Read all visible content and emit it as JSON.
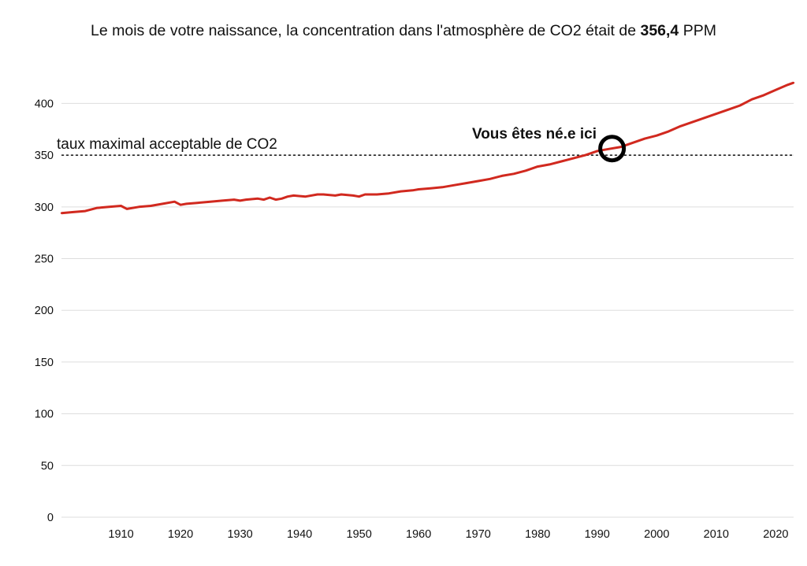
{
  "title": {
    "prefix": "Le mois de votre naissance, la concentration dans l'atmosphère de CO2 était de ",
    "value": "356,4",
    "suffix": " PPM"
  },
  "colors": {
    "series": "#d1291f",
    "grid": "#dddddd",
    "threshold": "#111111",
    "marker": "#000000"
  },
  "chart_data": {
    "type": "line",
    "title": "Le mois de votre naissance, la concentration dans l'atmosphère de CO2 était de 356,4 PPM",
    "xlabel": "",
    "ylabel": "",
    "xlim": [
      1900,
      2023
    ],
    "ylim": [
      0,
      430
    ],
    "grid": true,
    "legend": "none",
    "x_ticks": [
      1910,
      1920,
      1930,
      1940,
      1950,
      1960,
      1970,
      1980,
      1990,
      2000,
      2010,
      2020
    ],
    "y_ticks": [
      0,
      50,
      100,
      150,
      200,
      250,
      300,
      350,
      400
    ],
    "threshold": {
      "value": 350,
      "label": "taux maximal acceptable de CO2"
    },
    "birth": {
      "x": 1992.5,
      "y": 356.4,
      "label": "Vous êtes né.e ici"
    },
    "series": [
      {
        "x": [
          1900,
          1902,
          1904,
          1906,
          1908,
          1910,
          1911,
          1913,
          1915,
          1917,
          1919,
          1920,
          1921,
          1923,
          1925,
          1927,
          1929,
          1930,
          1931,
          1933,
          1934,
          1935,
          1936,
          1937,
          1938,
          1939,
          1941,
          1943,
          1944,
          1946,
          1947,
          1949,
          1950,
          1951,
          1953,
          1955,
          1957,
          1959,
          1960,
          1962,
          1964,
          1966,
          1968,
          1970,
          1972,
          1974,
          1976,
          1978,
          1980,
          1982,
          1984,
          1986,
          1988,
          1990,
          1992,
          1994,
          1996,
          1998,
          2000,
          2002,
          2004,
          2006,
          2008,
          2010,
          2012,
          2014,
          2016,
          2018,
          2020,
          2022,
          2023
        ],
        "values": [
          294,
          295,
          296,
          299,
          300,
          301,
          298,
          300,
          301,
          303,
          305,
          302,
          303,
          304,
          305,
          306,
          307,
          306,
          307,
          308,
          307,
          309,
          307,
          308,
          310,
          311,
          310,
          312,
          312,
          311,
          312,
          311,
          310,
          312,
          312,
          313,
          315,
          316,
          317,
          318,
          319,
          321,
          323,
          325,
          327,
          330,
          332,
          335,
          339,
          341,
          344,
          347,
          350,
          354,
          356,
          358,
          362,
          366,
          369,
          373,
          378,
          382,
          386,
          390,
          394,
          398,
          404,
          408,
          413,
          418,
          420
        ]
      }
    ]
  }
}
